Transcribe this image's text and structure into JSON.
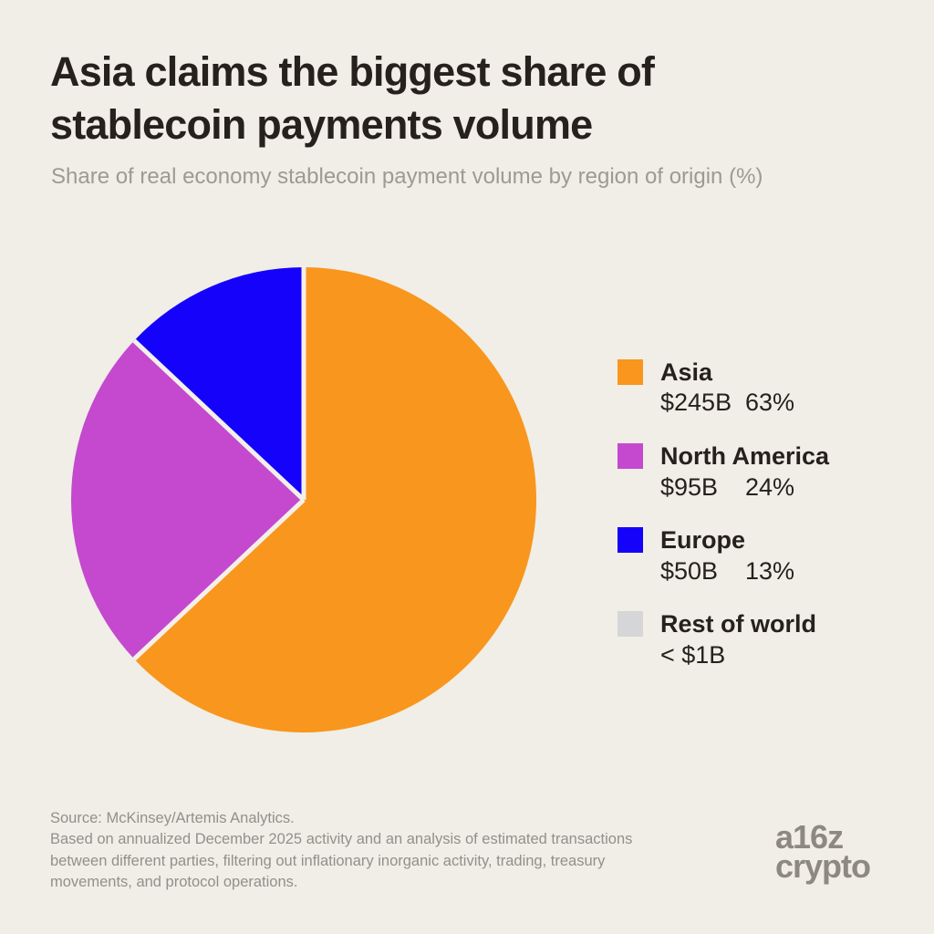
{
  "header": {
    "title": "Asia claims the biggest share of\nstablecoin payments volume",
    "subtitle": "Share of real economy stablecoin payment volume by region of origin (%)"
  },
  "chart_data": {
    "type": "pie",
    "title": "Asia claims the biggest share of stablecoin payments volume",
    "subtitle": "Share of real economy stablecoin payment volume by region of origin (%)",
    "start_angle_deg": -90,
    "direction": "clockwise",
    "legend_position": "right",
    "separator_color": "#F2F0E9",
    "slices": [
      {
        "label": "Asia",
        "amount": "$245B",
        "pct_label": "63%",
        "value": 63,
        "color": "#F9961D"
      },
      {
        "label": "North America",
        "amount": "$95B",
        "pct_label": "24%",
        "value": 24,
        "color": "#C449CE"
      },
      {
        "label": "Europe",
        "amount": "$50B",
        "pct_label": "13%",
        "value": 13,
        "color": "#1502FA"
      },
      {
        "label": "Rest of world",
        "amount": "< $1B",
        "pct_label": "",
        "value": 0,
        "color": "#D6D6D9"
      }
    ]
  },
  "footer": {
    "source_text": "Source: McKinsey/Artemis Analytics.\nBased on annualized December 2025 activity and an analysis of estimated transactions\nbetween different parties, filtering out inflationary inorganic activity, trading, treasury\nmovements, and protocol operations.",
    "logo_line1": "a16z",
    "logo_line2": "crypto"
  },
  "colors": {
    "background": "#F0EEE6",
    "title": "#26211D",
    "subtitle": "#9C9A93",
    "source": "#92908A",
    "logo": "#8D8981"
  }
}
